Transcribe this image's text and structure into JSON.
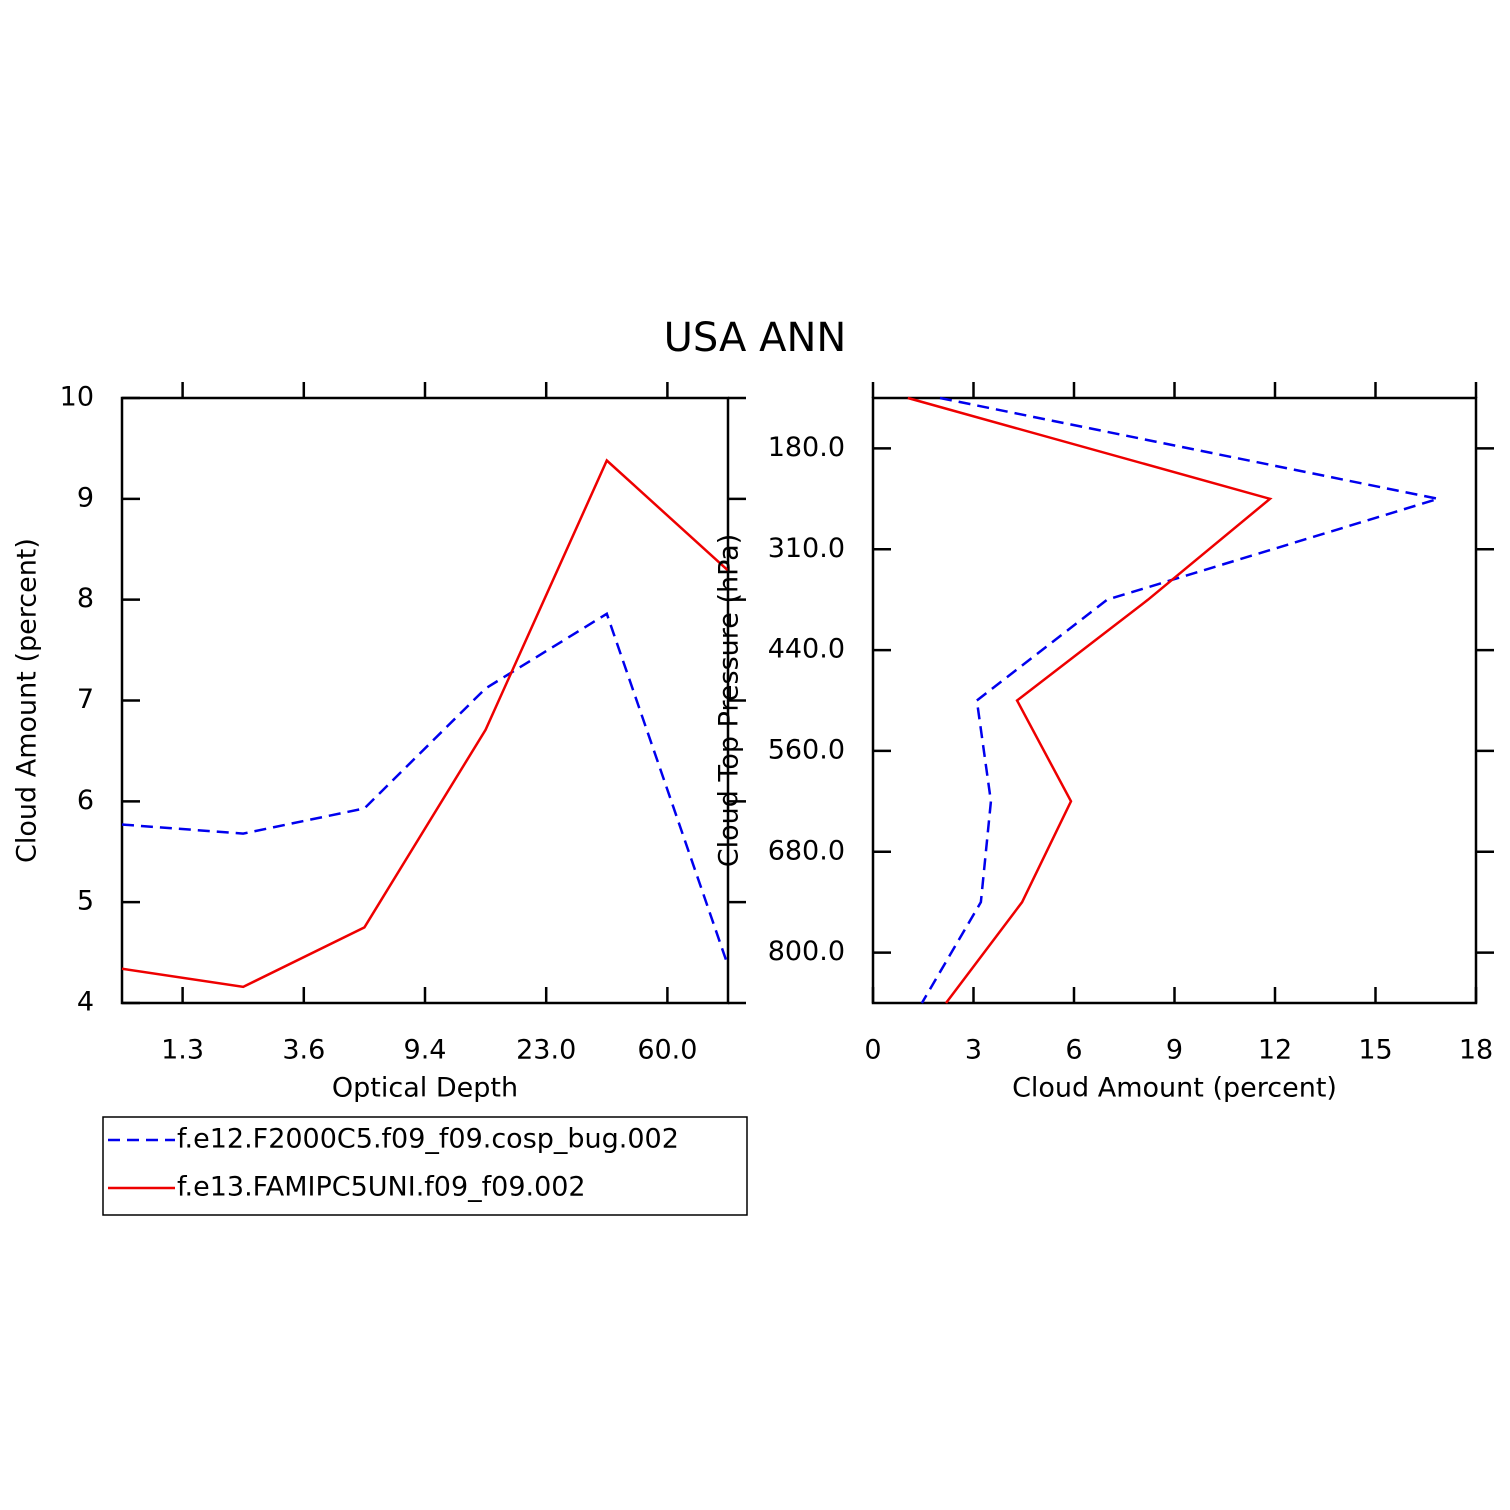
{
  "title": "USA ANN",
  "chart_data": [
    {
      "type": "line",
      "orientation": "vertical",
      "xlabel": "Optical Depth",
      "ylabel": "Cloud Amount (percent)",
      "x": [
        0,
        1,
        2,
        3,
        4,
        5
      ],
      "xlim": [
        0,
        5
      ],
      "xticks": [
        {
          "value": 0.5,
          "label": "1.3"
        },
        {
          "value": 1.5,
          "label": "3.6"
        },
        {
          "value": 2.5,
          "label": "9.4"
        },
        {
          "value": 3.5,
          "label": "23.0"
        },
        {
          "value": 4.5,
          "label": "60.0"
        }
      ],
      "ylim": [
        4,
        10
      ],
      "yticks": [
        4,
        5,
        6,
        7,
        8,
        9,
        10
      ],
      "series": [
        {
          "name": "f.e12.F2000C5.f09_f09.cosp_bug.002",
          "color": "#0000ee",
          "dash": true,
          "values": [
            5.77,
            5.68,
            5.93,
            7.12,
            7.86,
            4.37
          ]
        },
        {
          "name": "f.e13.FAMIPC5UNI.f09_f09.002",
          "color": "#ee0000",
          "dash": false,
          "values": [
            4.34,
            4.16,
            4.75,
            6.71,
            9.38,
            8.29
          ]
        }
      ]
    },
    {
      "type": "line",
      "orientation": "horizontal",
      "xlabel": "Cloud Amount (percent)",
      "ylabel": "Cloud Top Pressure (hPa)",
      "y": [
        0,
        1,
        2,
        3,
        4,
        5,
        6
      ],
      "ylim": [
        6,
        0
      ],
      "yticks": [
        {
          "value": 0.5,
          "label": "180.0"
        },
        {
          "value": 1.5,
          "label": "310.0"
        },
        {
          "value": 2.5,
          "label": "440.0"
        },
        {
          "value": 3.5,
          "label": "560.0"
        },
        {
          "value": 4.5,
          "label": "680.0"
        },
        {
          "value": 5.5,
          "label": "800.0"
        }
      ],
      "xlim": [
        0,
        18
      ],
      "xticks": [
        0,
        3,
        6,
        9,
        12,
        15,
        18
      ],
      "series": [
        {
          "color": "#0000ee",
          "dash": true,
          "values": [
            2.0,
            16.87,
            6.99,
            3.1,
            3.52,
            3.22,
            1.46
          ]
        },
        {
          "color": "#ee0000",
          "dash": false,
          "values": [
            1.04,
            11.85,
            8.21,
            4.3,
            5.91,
            4.45,
            2.18
          ]
        }
      ]
    }
  ]
}
